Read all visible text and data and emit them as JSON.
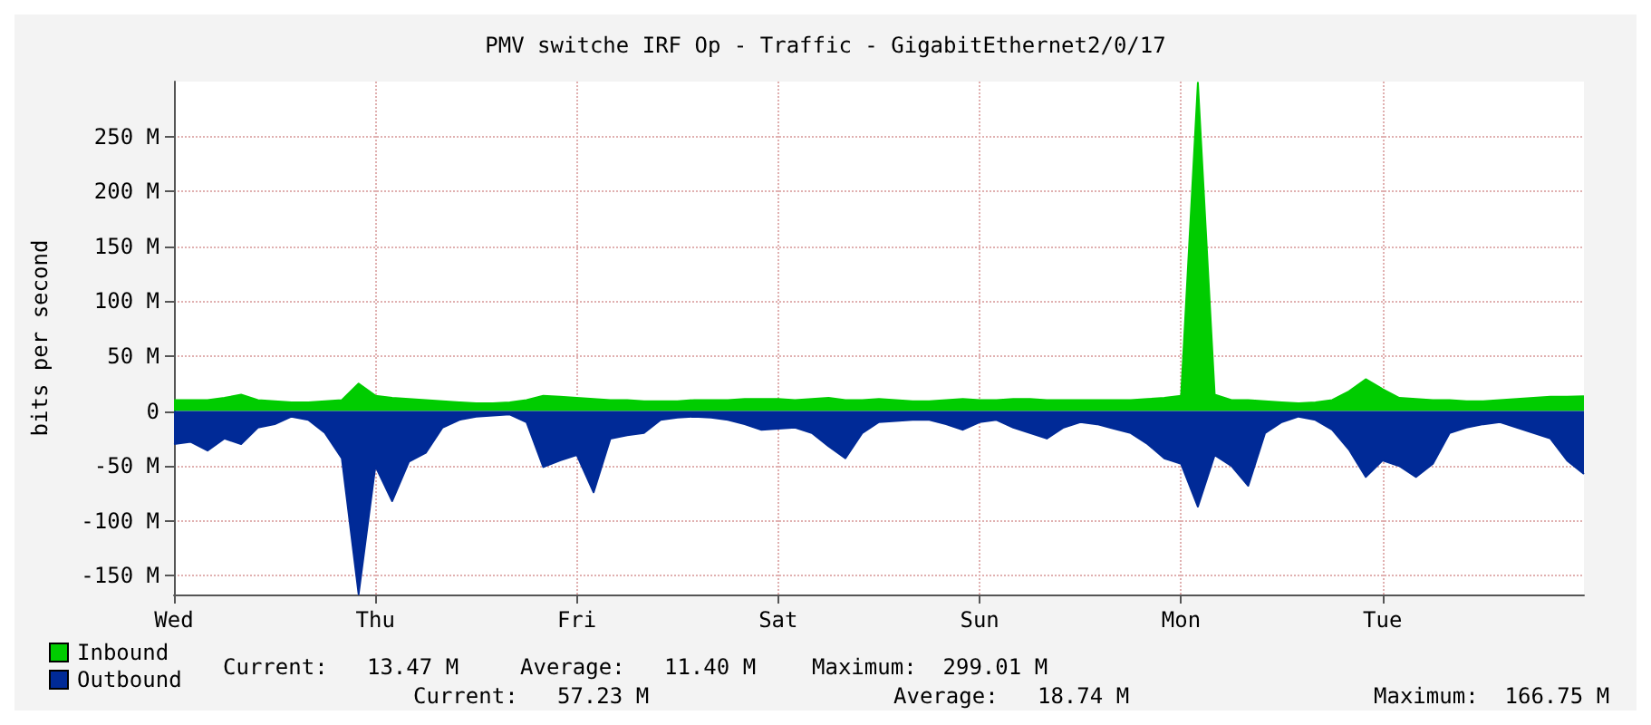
{
  "chart_data": {
    "type": "area",
    "title": "PMV switche IRF Op - Traffic - GigabitEthernet2/0/17",
    "ylabel": "bits per second",
    "categories": [
      "Wed",
      null,
      null,
      null,
      null,
      null,
      null,
      null,
      null,
      null,
      null,
      null,
      "Thu",
      null,
      null,
      null,
      null,
      null,
      null,
      null,
      null,
      null,
      null,
      null,
      "Fri",
      null,
      null,
      null,
      null,
      null,
      null,
      null,
      null,
      null,
      null,
      null,
      "Sat",
      null,
      null,
      null,
      null,
      null,
      null,
      null,
      null,
      null,
      null,
      null,
      "Sun",
      null,
      null,
      null,
      null,
      null,
      null,
      null,
      null,
      null,
      null,
      null,
      "Mon",
      null,
      null,
      null,
      null,
      null,
      null,
      null,
      null,
      null,
      null,
      null,
      "Tue",
      null,
      null,
      null,
      null,
      null,
      null,
      null,
      null,
      null,
      null,
      null,
      null
    ],
    "ylim": [
      -167,
      300
    ],
    "yticks": [
      {
        "value": -150,
        "label": "-150 M"
      },
      {
        "value": -100,
        "label": "-100 M"
      },
      {
        "value": -50,
        "label": "-50 M"
      },
      0,
      {
        "value": 50,
        "label": "50 M"
      },
      {
        "value": 100,
        "label": "100 M"
      },
      {
        "value": 150,
        "label": "150 M"
      },
      {
        "value": 200,
        "label": "200 M"
      },
      {
        "value": 250,
        "label": "250 M"
      }
    ],
    "grid": true,
    "legend": "bottom left",
    "marker": "none",
    "series": [
      {
        "name": "Inbound",
        "color": "#00cc00",
        "values": [
          10,
          10,
          10,
          12,
          15,
          10,
          9,
          8,
          8,
          9,
          10,
          25,
          14,
          12,
          11,
          10,
          9,
          8,
          7,
          7,
          8,
          10,
          14,
          13,
          12,
          11,
          10,
          10,
          9,
          9,
          9,
          10,
          10,
          10,
          11,
          11,
          11,
          10,
          11,
          12,
          10,
          10,
          11,
          10,
          9,
          9,
          10,
          11,
          10,
          10,
          11,
          11,
          10,
          10,
          10,
          10,
          10,
          10,
          11,
          12,
          14,
          299.01,
          15,
          10,
          10,
          9,
          8,
          7,
          8,
          10,
          18,
          29,
          20,
          12,
          11,
          10,
          10,
          9,
          9,
          10,
          11,
          12,
          13,
          13,
          13.47
        ]
      },
      {
        "name": "Outbound",
        "color": "#002a97",
        "values": [
          -30,
          -28,
          -36,
          -25,
          -30,
          -15,
          -12,
          -5,
          -8,
          -20,
          -43,
          -166.75,
          -50,
          -82,
          -46,
          -38,
          -15,
          -8,
          -5,
          -4,
          -3,
          -10,
          -51,
          -45,
          -40,
          -74,
          -25,
          -22,
          -20,
          -8,
          -6,
          -5,
          -6,
          -8,
          -12,
          -17,
          -16,
          -15,
          -20,
          -32,
          -43,
          -20,
          -10,
          -9,
          -8,
          -8,
          -12,
          -17,
          -10,
          -8,
          -15,
          -20,
          -25,
          -15,
          -10,
          -12,
          -16,
          -20,
          -30,
          -43,
          -48,
          -87,
          -40,
          -50,
          -68,
          -20,
          -10,
          -5,
          -8,
          -17,
          -35,
          -60,
          -45,
          -50,
          -60,
          -48,
          -20,
          -15,
          -12,
          -10,
          -15,
          -20,
          -25,
          -45,
          -57.23
        ]
      }
    ],
    "annotations": [
      "Current:   13.47 M",
      "Average:   11.40 M",
      "Maximum:  299.01 M",
      "Current:   57.23 M",
      "Average:   18.74 M",
      "Maximum:  166.75 M"
    ]
  }
}
